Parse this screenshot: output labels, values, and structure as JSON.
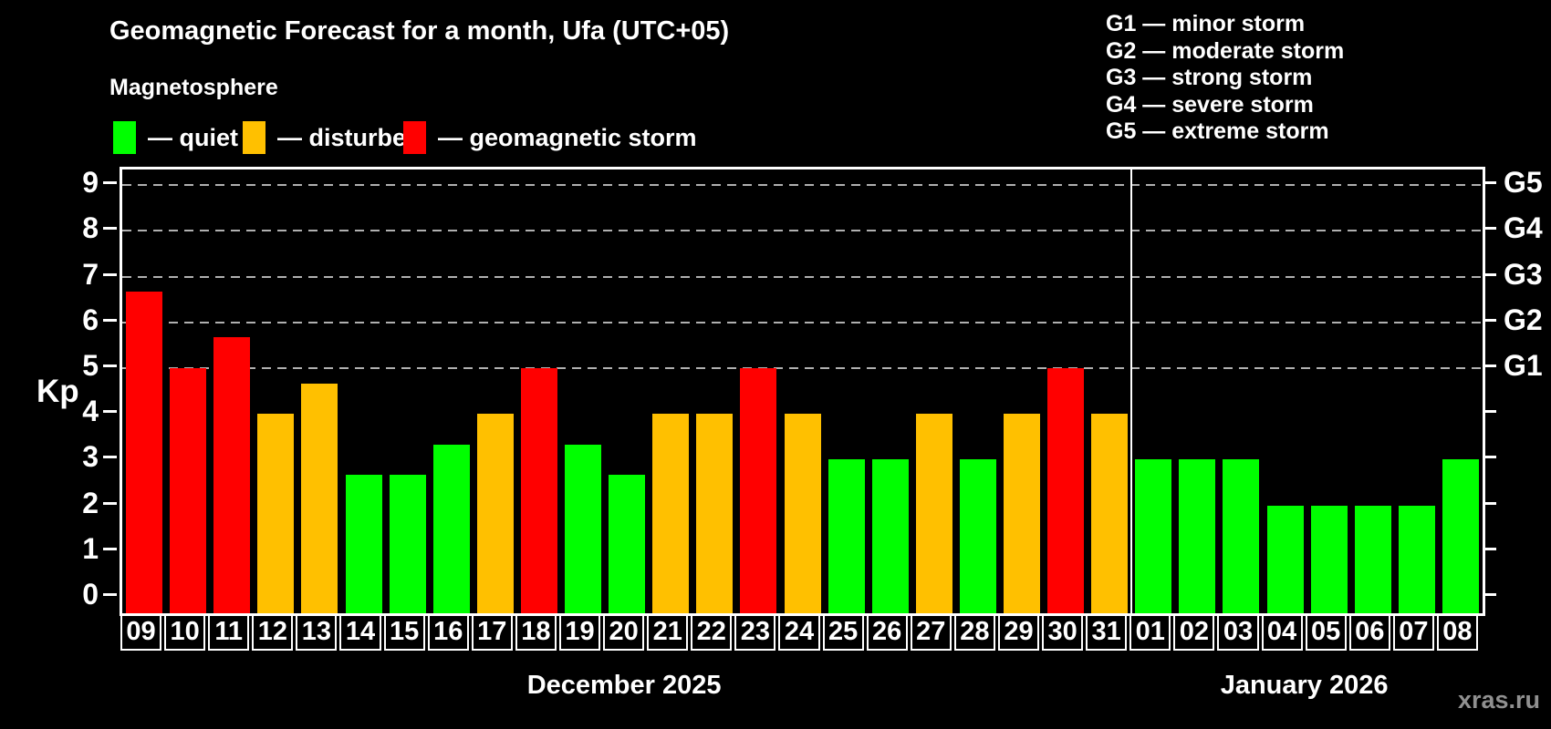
{
  "header": {
    "title": "Geomagnetic Forecast for a month, Ufa (UTC+05)",
    "subtitle": "Magnetosphere"
  },
  "legend": {
    "items": [
      {
        "key": "quiet",
        "label": "— quiet",
        "color": "#00ff00"
      },
      {
        "key": "disturbed",
        "label": "— disturbed",
        "color": "#ffc000"
      },
      {
        "key": "storm",
        "label": "— geomagnetic storm",
        "color": "#ff0000"
      }
    ]
  },
  "g_legend": {
    "items": [
      "G1 — minor storm",
      "G2 — moderate storm",
      "G3 — strong storm",
      "G4 — severe storm",
      "G5 — extreme storm"
    ]
  },
  "footer": {
    "watermark": "xras.ru"
  },
  "chart_data": {
    "type": "bar",
    "title": "Geomagnetic Forecast for a month, Ufa (UTC+05)",
    "subtitle": "Magnetosphere",
    "ylabel": "Kp",
    "ylim": [
      0,
      9
    ],
    "yticks": [
      0,
      1,
      2,
      3,
      4,
      5,
      6,
      7,
      8,
      9
    ],
    "grid_kp": [
      5,
      6,
      7,
      8,
      9
    ],
    "grid_style": "dashed",
    "legend_position": "top-left",
    "right_axis_labels": [
      {
        "text": "G1",
        "kp": 5
      },
      {
        "text": "G2",
        "kp": 6
      },
      {
        "text": "G3",
        "kp": 7
      },
      {
        "text": "G4",
        "kp": 8
      },
      {
        "text": "G5",
        "kp": 9
      }
    ],
    "level_colors": {
      "quiet": "#00ff00",
      "disturbed": "#ffc000",
      "storm": "#ff0000"
    },
    "months": [
      {
        "label": "December 2025",
        "bars": [
          {
            "day": "09",
            "kp": 6.67,
            "level": "storm"
          },
          {
            "day": "10",
            "kp": 5.0,
            "level": "storm"
          },
          {
            "day": "11",
            "kp": 5.67,
            "level": "storm"
          },
          {
            "day": "12",
            "kp": 4.0,
            "level": "disturbed"
          },
          {
            "day": "13",
            "kp": 4.67,
            "level": "disturbed"
          },
          {
            "day": "14",
            "kp": 2.67,
            "level": "quiet"
          },
          {
            "day": "15",
            "kp": 2.67,
            "level": "quiet"
          },
          {
            "day": "16",
            "kp": 3.33,
            "level": "quiet"
          },
          {
            "day": "17",
            "kp": 4.0,
            "level": "disturbed"
          },
          {
            "day": "18",
            "kp": 5.0,
            "level": "storm"
          },
          {
            "day": "19",
            "kp": 3.33,
            "level": "quiet"
          },
          {
            "day": "20",
            "kp": 2.67,
            "level": "quiet"
          },
          {
            "day": "21",
            "kp": 4.0,
            "level": "disturbed"
          },
          {
            "day": "22",
            "kp": 4.0,
            "level": "disturbed"
          },
          {
            "day": "23",
            "kp": 5.0,
            "level": "storm"
          },
          {
            "day": "24",
            "kp": 4.0,
            "level": "disturbed"
          },
          {
            "day": "25",
            "kp": 3.0,
            "level": "quiet"
          },
          {
            "day": "26",
            "kp": 3.0,
            "level": "quiet"
          },
          {
            "day": "27",
            "kp": 4.0,
            "level": "disturbed"
          },
          {
            "day": "28",
            "kp": 3.0,
            "level": "quiet"
          },
          {
            "day": "29",
            "kp": 4.0,
            "level": "disturbed"
          },
          {
            "day": "30",
            "kp": 5.0,
            "level": "storm"
          },
          {
            "day": "31",
            "kp": 4.0,
            "level": "disturbed"
          }
        ]
      },
      {
        "label": "January 2026",
        "bars": [
          {
            "day": "01",
            "kp": 3.0,
            "level": "quiet"
          },
          {
            "day": "02",
            "kp": 3.0,
            "level": "quiet"
          },
          {
            "day": "03",
            "kp": 3.0,
            "level": "quiet"
          },
          {
            "day": "04",
            "kp": 2.0,
            "level": "quiet"
          },
          {
            "day": "05",
            "kp": 2.0,
            "level": "quiet"
          },
          {
            "day": "06",
            "kp": 2.0,
            "level": "quiet"
          },
          {
            "day": "07",
            "kp": 2.0,
            "level": "quiet"
          },
          {
            "day": "08",
            "kp": 3.0,
            "level": "quiet"
          }
        ]
      }
    ]
  }
}
